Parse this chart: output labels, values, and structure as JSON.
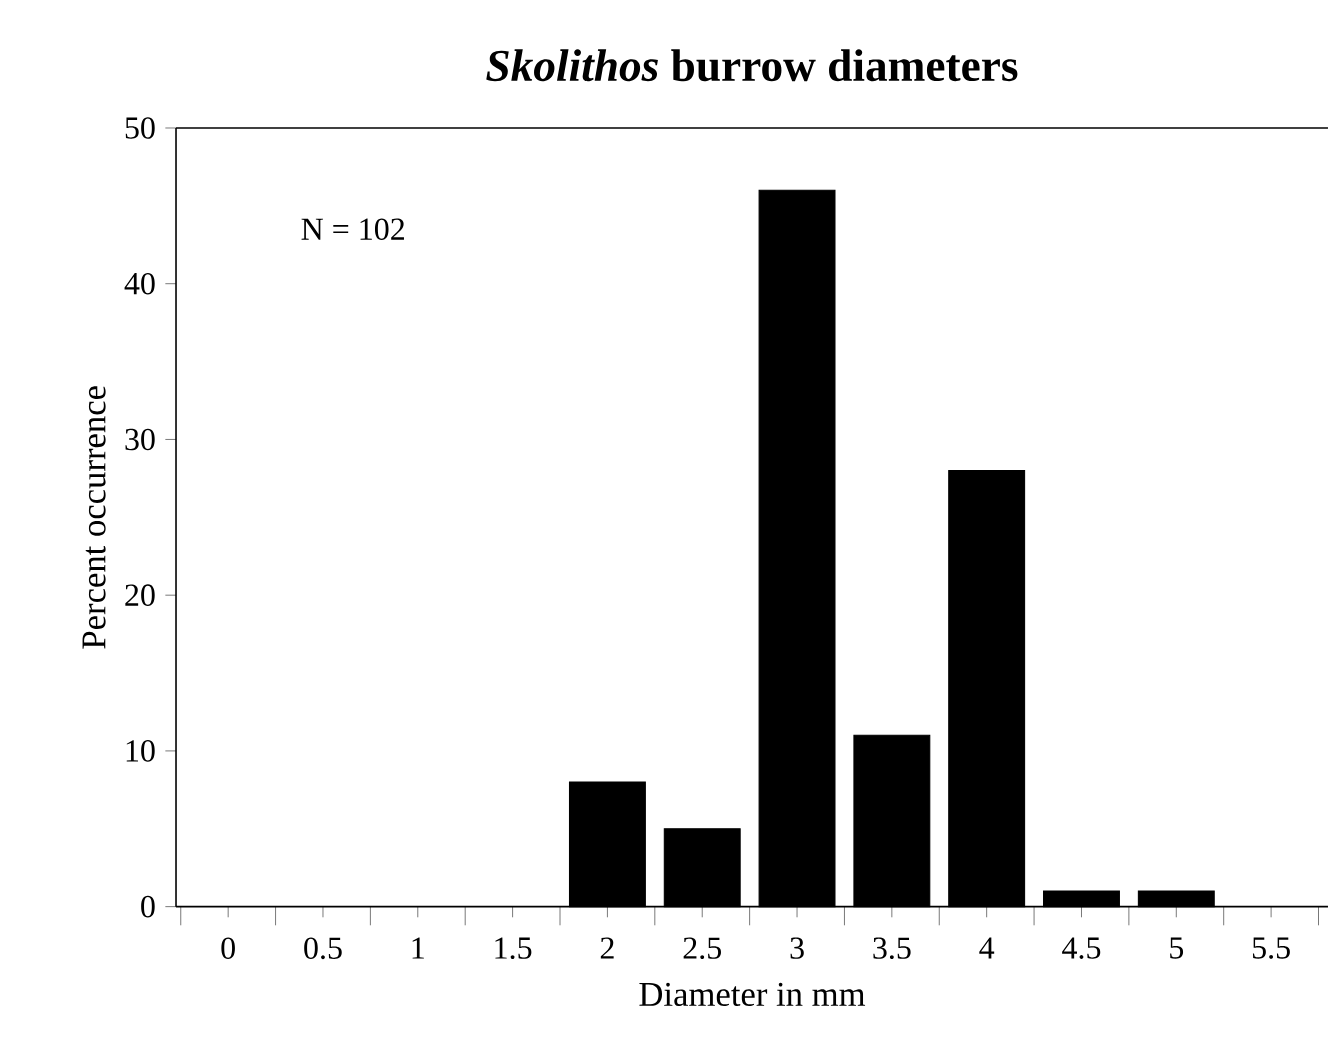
{
  "chart_data": {
    "type": "bar",
    "title": "*Skolithos* burrow diameters",
    "xlabel": "Diameter in mm",
    "ylabel": "Percent occurrence",
    "categories": [
      "0",
      "0.5",
      "1",
      "1.5",
      "2",
      "2.5",
      "3",
      "3.5",
      "4",
      "4.5",
      "5",
      "5.5"
    ],
    "values": [
      null,
      null,
      null,
      null,
      8,
      5,
      46,
      11,
      28,
      1,
      1,
      null
    ],
    "color": "#000000",
    "ylim": [
      0,
      50
    ],
    "yticks": [
      0,
      10,
      20,
      30,
      40,
      50
    ],
    "grid": false,
    "annotations": [
      "N = 102"
    ]
  }
}
